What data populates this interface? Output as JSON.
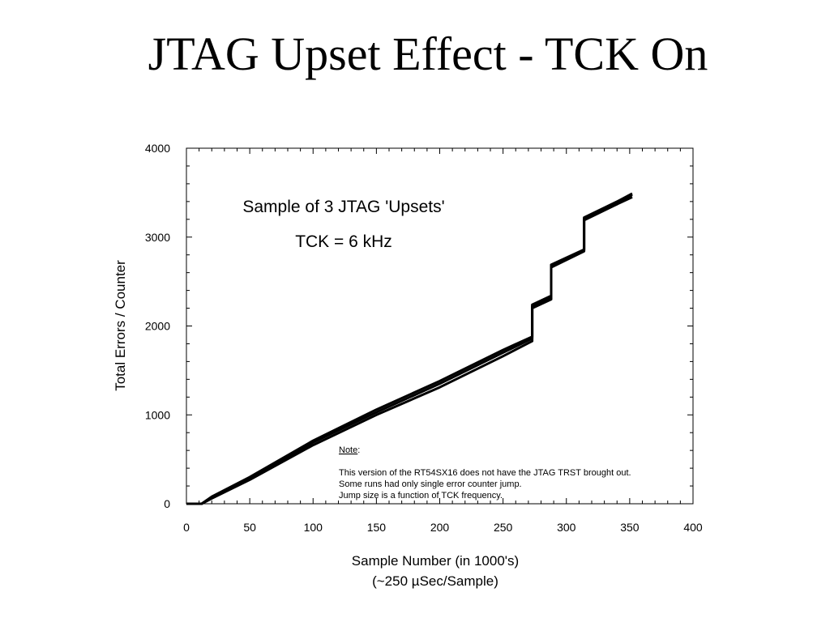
{
  "slide": {
    "title": "JTAG Upset Effect - TCK On"
  },
  "chart_data": {
    "type": "line",
    "xlabel": "Sample Number (in 1000's)",
    "xlabel_sub": "(~250 µSec/Sample)",
    "ylabel": "Total Errors / Counter",
    "xlim": [
      0,
      400
    ],
    "ylim": [
      0,
      4000
    ],
    "x_ticks": [
      0,
      50,
      100,
      150,
      200,
      250,
      300,
      350,
      400
    ],
    "y_ticks": [
      0,
      1000,
      2000,
      3000,
      4000
    ],
    "grid": false,
    "annotations": {
      "heading": "Sample of 3 JTAG 'Upsets'",
      "subheading": "TCK = 6 kHz",
      "note_label": "Note",
      "note_lines": [
        "This version of the RT54SX16 does not have the JTAG TRST brought out.",
        "Some runs had only single error counter jump.",
        "Jump size is a function of TCK frequency."
      ]
    },
    "series": [
      {
        "x": [
          0,
          12,
          20,
          50,
          100,
          150,
          200,
          250,
          273,
          273,
          288,
          288,
          314,
          314,
          340,
          352
        ],
        "y": [
          0,
          0,
          80,
          300,
          710,
          1060,
          1380,
          1730,
          1880,
          2240,
          2340,
          2690,
          2860,
          3220,
          3400,
          3490
        ]
      },
      {
        "x": [
          0,
          12,
          20,
          50,
          100,
          150,
          200,
          250,
          273,
          273,
          288,
          288,
          314,
          314,
          340,
          352
        ],
        "y": [
          0,
          0,
          60,
          270,
          660,
          1000,
          1310,
          1660,
          1830,
          2200,
          2300,
          2660,
          2840,
          3190,
          3370,
          3450
        ]
      },
      {
        "x": [
          0,
          12,
          20,
          50,
          100,
          150,
          200,
          250,
          273,
          273,
          288,
          288,
          314,
          314,
          340,
          352
        ],
        "y": [
          0,
          0,
          70,
          285,
          690,
          1030,
          1350,
          1700,
          1860,
          2220,
          2320,
          2675,
          2850,
          3205,
          3385,
          3475
        ]
      }
    ]
  }
}
